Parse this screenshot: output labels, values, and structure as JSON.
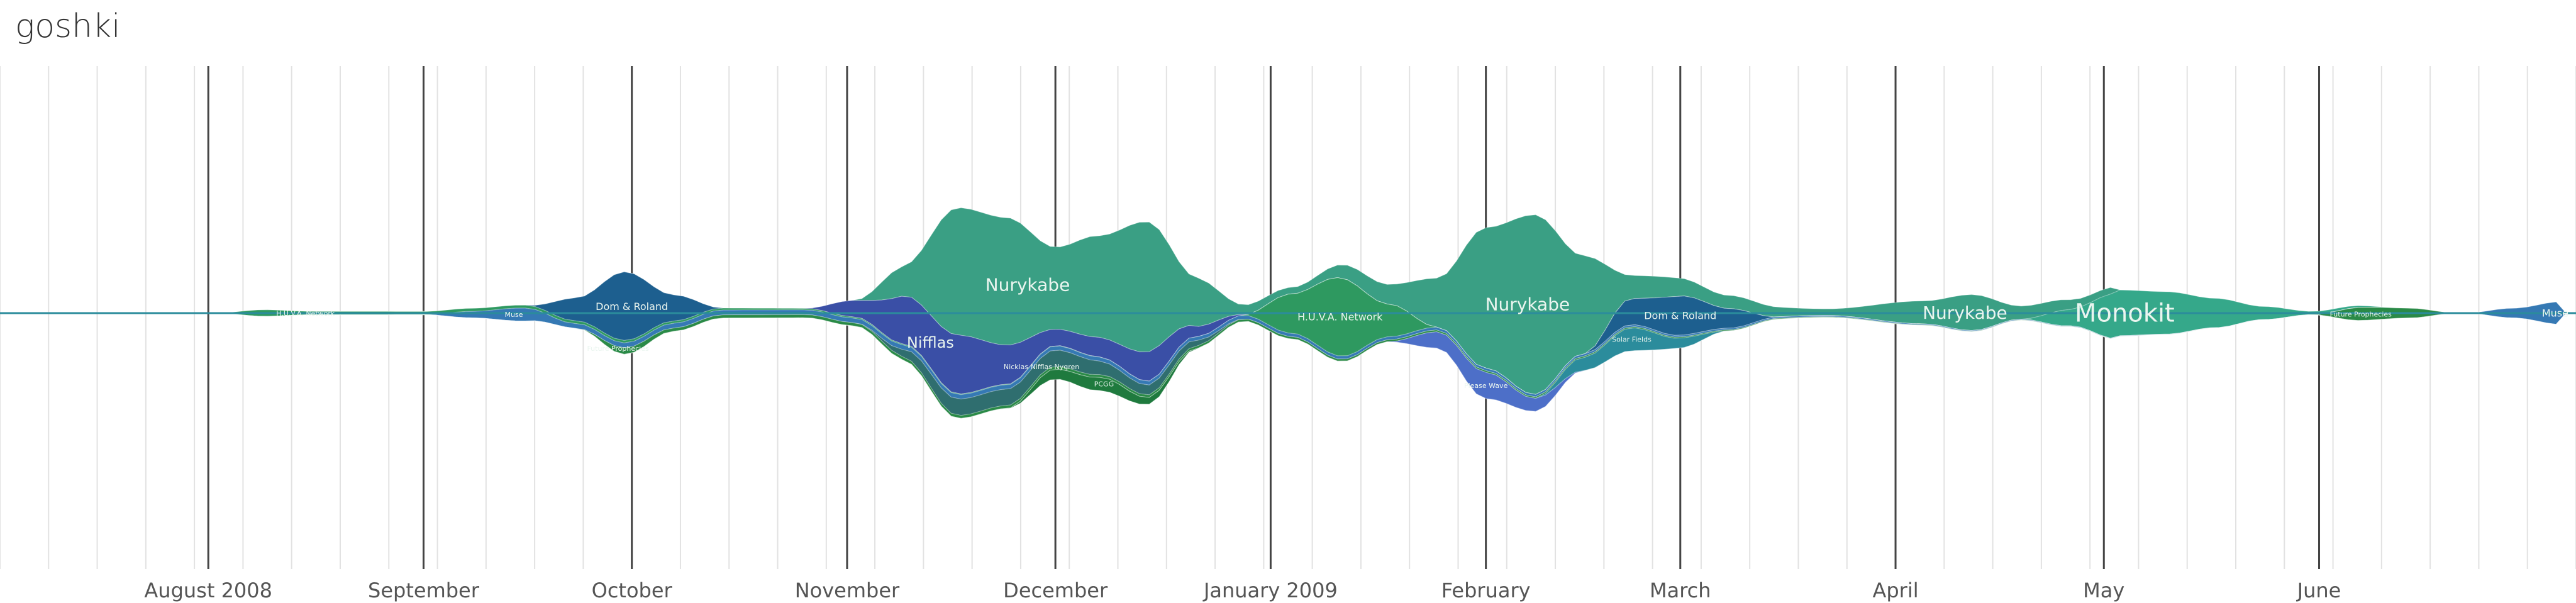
{
  "page": {
    "user_title": "goshki"
  },
  "chart_data": {
    "type": "area",
    "title": "",
    "xlabel": "",
    "ylabel": "",
    "x_axis": {
      "start": "2008-07-01",
      "end": "2009-07-07",
      "major_ticks": [
        {
          "label": "August 2008",
          "date": "2008-07-31"
        },
        {
          "label": "September",
          "date": "2008-08-31"
        },
        {
          "label": "October",
          "date": "2008-09-30"
        },
        {
          "label": "November",
          "date": "2008-10-31"
        },
        {
          "label": "December",
          "date": "2008-11-30"
        },
        {
          "label": "January 2009",
          "date": "2008-12-31"
        },
        {
          "label": "February",
          "date": "2009-01-31"
        },
        {
          "label": "March",
          "date": "2009-02-28"
        },
        {
          "label": "April",
          "date": "2009-03-31"
        },
        {
          "label": "May",
          "date": "2009-04-30"
        },
        {
          "label": "June",
          "date": "2009-05-31"
        }
      ],
      "minor_grid": "weekly"
    },
    "grid": true,
    "colors": {
      "primary_layer": "#3a9f84",
      "palette": [
        "#1f7a3e",
        "#2a8a47",
        "#2e9960",
        "#35a88a",
        "#2b8c9c",
        "#3579b4",
        "#3a4fa6",
        "#4d6fc8",
        "#2f6e6f",
        "#1d5f8f"
      ]
    },
    "series": [
      {
        "name": "Nurykabe",
        "values": [
          [
            "2008-11-01",
            0
          ],
          [
            "2008-11-08",
            18
          ],
          [
            "2008-11-16",
            78
          ],
          [
            "2008-11-23",
            78
          ],
          [
            "2008-11-30",
            50
          ],
          [
            "2008-12-06",
            62
          ],
          [
            "2008-12-13",
            80
          ],
          [
            "2008-12-20",
            30
          ],
          [
            "2008-12-27",
            6
          ],
          [
            "2009-01-03",
            4
          ],
          [
            "2009-01-17",
            12
          ],
          [
            "2009-01-24",
            30
          ],
          [
            "2009-01-31",
            86
          ],
          [
            "2009-02-07",
            110
          ],
          [
            "2009-02-14",
            60
          ],
          [
            "2009-02-21",
            14
          ],
          [
            "2009-03-07",
            8
          ],
          [
            "2009-03-21",
            4
          ],
          [
            "2009-04-04",
            14
          ],
          [
            "2009-04-11",
            22
          ],
          [
            "2009-04-18",
            8
          ],
          [
            "2009-05-02",
            4
          ]
        ]
      },
      {
        "name": "Monokit",
        "values": [
          [
            "2009-04-18",
            0
          ],
          [
            "2009-04-25",
            10
          ],
          [
            "2009-05-02",
            28
          ],
          [
            "2009-05-09",
            26
          ],
          [
            "2009-05-16",
            18
          ],
          [
            "2009-05-23",
            8
          ],
          [
            "2009-05-30",
            2
          ],
          [
            "2009-06-13",
            0
          ]
        ]
      },
      {
        "name": "Nifflas",
        "values": [
          [
            "2008-10-25",
            0
          ],
          [
            "2008-11-01",
            10
          ],
          [
            "2008-11-09",
            30
          ],
          [
            "2008-11-16",
            36
          ],
          [
            "2008-11-23",
            24
          ],
          [
            "2008-11-30",
            10
          ],
          [
            "2008-12-07",
            12
          ],
          [
            "2008-12-14",
            18
          ],
          [
            "2008-12-21",
            6
          ],
          [
            "2008-12-28",
            0
          ]
        ]
      },
      {
        "name": "Dom & Roland",
        "values": [
          [
            "2008-09-15",
            0
          ],
          [
            "2008-09-22",
            14
          ],
          [
            "2008-09-29",
            42
          ],
          [
            "2008-10-06",
            16
          ],
          [
            "2008-10-13",
            0
          ],
          [
            "2009-02-14",
            0
          ],
          [
            "2009-02-21",
            16
          ],
          [
            "2009-02-28",
            24
          ],
          [
            "2009-03-07",
            12
          ],
          [
            "2009-03-14",
            0
          ]
        ]
      },
      {
        "name": "H.U.V.A. Network",
        "values": [
          [
            "2008-08-01",
            0
          ],
          [
            "2008-08-08",
            4
          ],
          [
            "2008-08-15",
            2
          ],
          [
            "2008-12-27",
            0
          ],
          [
            "2009-01-03",
            24
          ],
          [
            "2009-01-10",
            48
          ],
          [
            "2009-01-17",
            20
          ],
          [
            "2009-01-24",
            0
          ]
        ]
      },
      {
        "name": "Muse",
        "values": [
          [
            "2008-08-31",
            0
          ],
          [
            "2008-09-07",
            4
          ],
          [
            "2008-09-14",
            8
          ],
          [
            "2008-09-21",
            3
          ],
          [
            "2009-06-21",
            0
          ],
          [
            "2009-06-28",
            6
          ],
          [
            "2009-07-05",
            14
          ]
        ]
      },
      {
        "name": "Nicklas Nifflas Nygren",
        "values": [
          [
            "2008-11-01",
            0
          ],
          [
            "2008-11-16",
            10
          ],
          [
            "2008-11-30",
            10
          ],
          [
            "2008-12-14",
            6
          ],
          [
            "2008-12-28",
            0
          ]
        ]
      },
      {
        "name": "Future Prophecies",
        "values": [
          [
            "2008-09-22",
            0
          ],
          [
            "2008-09-29",
            4
          ],
          [
            "2008-10-06",
            2
          ],
          [
            "2009-05-30",
            0
          ],
          [
            "2009-06-06",
            8
          ],
          [
            "2009-06-13",
            6
          ],
          [
            "2009-06-20",
            0
          ]
        ]
      },
      {
        "name": "Solar Fields",
        "values": [
          [
            "2009-02-07",
            0
          ],
          [
            "2009-02-14",
            8
          ],
          [
            "2009-02-21",
            14
          ],
          [
            "2009-02-28",
            6
          ],
          [
            "2009-03-07",
            0
          ]
        ]
      },
      {
        "name": "Please Wave",
        "values": [
          [
            "2009-01-17",
            0
          ],
          [
            "2009-01-24",
            10
          ],
          [
            "2009-01-31",
            16
          ],
          [
            "2009-02-07",
            8
          ],
          [
            "2009-02-14",
            0
          ]
        ]
      },
      {
        "name": "PCGG",
        "values": [
          [
            "2008-11-23",
            0
          ],
          [
            "2008-11-30",
            6
          ],
          [
            "2008-12-07",
            8
          ],
          [
            "2008-12-14",
            4
          ],
          [
            "2008-12-21",
            0
          ]
        ]
      }
    ],
    "labels": [
      {
        "text": "Nurykabe",
        "series": "Nurykabe",
        "date": "2008-11-26",
        "size": "large"
      },
      {
        "text": "Nurykabe",
        "series": "Nurykabe",
        "date": "2009-02-06",
        "size": "large"
      },
      {
        "text": "Nurykabe",
        "series": "Nurykabe",
        "date": "2009-04-10",
        "size": "large"
      },
      {
        "text": "Monokit",
        "series": "Monokit",
        "date": "2009-05-03",
        "size": "xlarge"
      },
      {
        "text": "Nifflas",
        "series": "Nifflas",
        "date": "2008-11-12",
        "size": "medium"
      },
      {
        "text": "Dom & Roland",
        "series": "Dom & Roland",
        "date": "2008-09-30",
        "size": "small"
      },
      {
        "text": "Dom & Roland",
        "series": "Dom & Roland",
        "date": "2009-02-28",
        "size": "small"
      },
      {
        "text": "H.U.V.A. Network",
        "series": "H.U.V.A. Network",
        "date": "2009-01-10",
        "size": "small"
      },
      {
        "text": "H.U.V.A. Network",
        "series": "H.U.V.A. Network",
        "date": "2008-08-14",
        "size": "tiny"
      },
      {
        "text": "Muse",
        "series": "Muse",
        "date": "2008-09-13",
        "size": "tiny"
      },
      {
        "text": "Muse",
        "series": "Muse",
        "date": "2009-07-04",
        "size": "small"
      },
      {
        "text": "Nicklas Nifflas Nygren",
        "series": "Nicklas Nifflas Nygren",
        "date": "2008-11-28",
        "size": "tiny"
      },
      {
        "text": "Future Prophecies",
        "series": "Future Prophecies",
        "date": "2008-09-28",
        "size": "tiny"
      },
      {
        "text": "Future Prophecies",
        "series": "Future Prophecies",
        "date": "2009-06-06",
        "size": "tiny"
      },
      {
        "text": "Solar Fields",
        "series": "Solar Fields",
        "date": "2009-02-21",
        "size": "tiny"
      },
      {
        "text": "Please Wave",
        "series": "Please Wave",
        "date": "2009-01-31",
        "size": "tiny"
      },
      {
        "text": "PCGG",
        "series": "PCGG",
        "date": "2008-12-07",
        "size": "tiny"
      }
    ]
  }
}
